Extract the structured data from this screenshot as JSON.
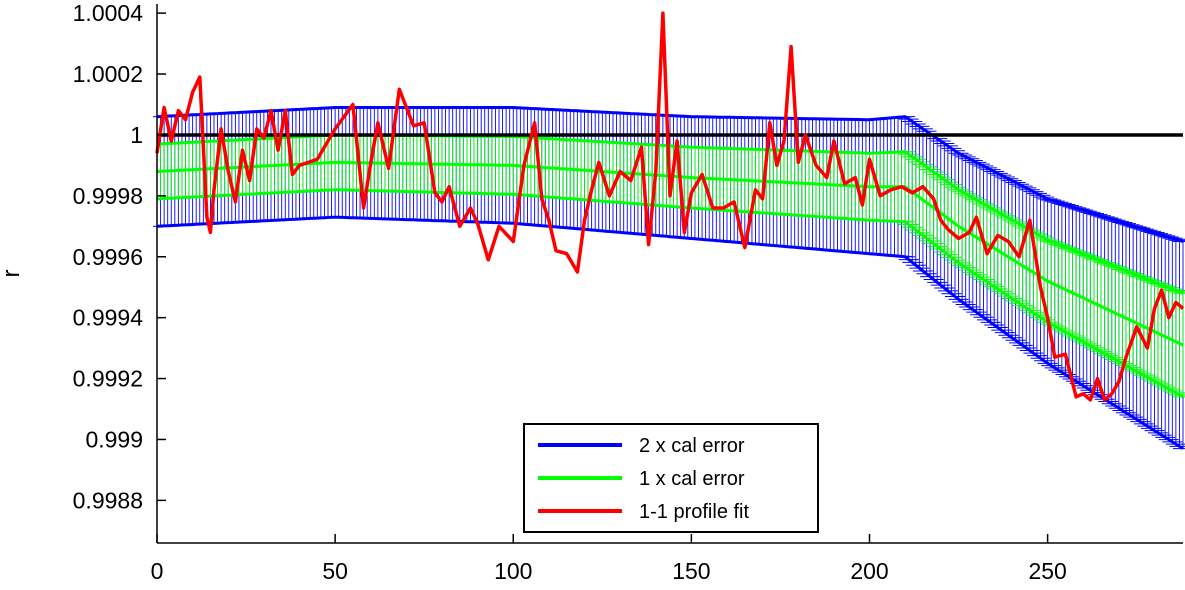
{
  "chart_data": {
    "type": "line",
    "title": "",
    "xlabel": "",
    "ylabel": "r",
    "xlim": [
      0,
      288
    ],
    "ylim": [
      0.99866,
      1.00043
    ],
    "xticks": [
      0,
      50,
      100,
      150,
      200,
      250
    ],
    "xtick_labels": [
      "0",
      "50",
      "100",
      "150",
      "200",
      "250"
    ],
    "yticks": [
      0.9988,
      0.999,
      0.9992,
      0.9994,
      0.9996,
      0.9998,
      1.0,
      1.0002,
      1.0004
    ],
    "ytick_labels": [
      "0.9988",
      "0.999",
      "0.9992",
      "0.9994",
      "0.9996",
      "0.9998",
      "1",
      "1.0002",
      "1.0004"
    ],
    "grid": false,
    "legend_position": "bottom-center",
    "reference_line": {
      "y": 1.0,
      "color": "#000000"
    },
    "center_curve": {
      "x": [
        0,
        50,
        100,
        150,
        200,
        210,
        225,
        250,
        288
      ],
      "y": [
        0.99988,
        0.99991,
        0.9999,
        0.99986,
        0.99983,
        0.99983,
        0.9997,
        0.99952,
        0.99931
      ]
    },
    "bands": [
      {
        "name": "2 x cal error",
        "color": "#0000ff",
        "halfwidth": {
          "x": [
            0,
            50,
            100,
            150,
            200,
            210,
            225,
            250,
            288
          ],
          "y": [
            0.00018,
            0.00018,
            0.00019,
            0.0002,
            0.00022,
            0.00023,
            0.00024,
            0.00027,
            0.00034
          ]
        }
      },
      {
        "name": "1 x cal error",
        "color": "#00ff00",
        "halfwidth": {
          "x": [
            0,
            50,
            100,
            150,
            200,
            210,
            225,
            250,
            288
          ],
          "y": [
            9e-05,
            9e-05,
            9.5e-05,
            0.0001,
            0.00011,
            0.000115,
            0.00012,
            0.000135,
            0.00017
          ]
        }
      }
    ],
    "series": [
      {
        "name": "1-1 profile fit",
        "color": "#ff0000",
        "x": [
          0,
          2,
          4,
          6,
          8,
          10,
          12,
          14,
          15,
          16,
          18,
          20,
          22,
          24,
          26,
          28,
          30,
          32,
          34,
          36,
          38,
          40,
          45,
          50,
          55,
          58,
          60,
          62,
          65,
          68,
          72,
          75,
          78,
          80,
          82,
          85,
          88,
          90,
          93,
          96,
          100,
          103,
          106,
          108,
          110,
          112,
          115,
          118,
          120,
          122,
          124,
          127,
          130,
          133,
          136,
          138,
          140,
          142,
          144,
          146,
          148,
          150,
          153,
          156,
          159,
          162,
          165,
          168,
          170,
          172,
          174,
          176,
          178,
          180,
          182,
          185,
          188,
          190,
          193,
          196,
          198,
          200,
          203,
          206,
          209,
          212,
          215,
          218,
          220,
          222,
          225,
          228,
          230,
          233,
          236,
          239,
          242,
          245,
          248,
          250,
          252,
          255,
          258,
          260,
          262,
          264,
          266,
          268,
          270,
          272,
          275,
          278,
          280,
          282,
          284,
          286,
          288
        ],
        "y": [
          0.99994,
          1.00009,
          0.99998,
          1.00008,
          1.00005,
          1.00014,
          1.00019,
          0.99973,
          0.99968,
          0.99982,
          1.00002,
          0.99988,
          0.99978,
          0.99995,
          0.99985,
          1.00002,
          0.99999,
          1.00008,
          0.99995,
          1.00008,
          0.99987,
          0.9999,
          0.99992,
          1.00002,
          1.0001,
          0.99976,
          0.99991,
          1.00004,
          0.99989,
          1.00015,
          1.00003,
          1.00004,
          0.99981,
          0.99978,
          0.99983,
          0.9997,
          0.99976,
          0.99971,
          0.99959,
          0.9997,
          0.99965,
          0.9999,
          1.00004,
          0.99979,
          0.99972,
          0.99962,
          0.99961,
          0.99955,
          0.99972,
          0.99982,
          0.99991,
          0.9998,
          0.99988,
          0.99985,
          0.99996,
          0.99964,
          0.99988,
          1.0004,
          0.9998,
          0.99998,
          0.99968,
          0.99981,
          0.99987,
          0.99976,
          0.99976,
          0.99978,
          0.99963,
          0.99982,
          0.99979,
          1.00004,
          0.9999,
          0.99998,
          1.00029,
          0.99991,
          1.0,
          0.9999,
          0.99986,
          0.99998,
          0.99984,
          0.99986,
          0.99977,
          0.99992,
          0.9998,
          0.99982,
          0.99983,
          0.99981,
          0.99983,
          0.99979,
          0.99972,
          0.99969,
          0.99966,
          0.99968,
          0.99973,
          0.99961,
          0.99967,
          0.99965,
          0.9996,
          0.99972,
          0.9995,
          0.9994,
          0.99927,
          0.99928,
          0.99914,
          0.99915,
          0.99913,
          0.9992,
          0.99913,
          0.99915,
          0.99919,
          0.99927,
          0.99937,
          0.9993,
          0.99943,
          0.99949,
          0.9994,
          0.99945,
          0.99943
        ]
      }
    ]
  }
}
